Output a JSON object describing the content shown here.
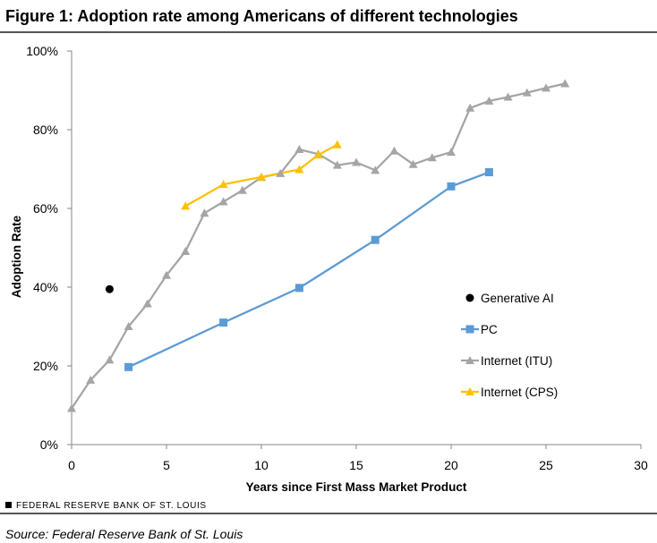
{
  "header": {
    "title": "Figure 1: Adoption rate among Americans of different technologies"
  },
  "footer": {
    "brand": "FEDERAL RESERVE BANK OF ST. LOUIS",
    "source": "Source: Federal Reserve Bank of St. Louis"
  },
  "chart_data": {
    "type": "line",
    "title": "Figure 1: Adoption rate among Americans of different technologies",
    "xlabel": "Years since First Mass Market Product",
    "ylabel": "Adoption Rate",
    "xlim": [
      0,
      30
    ],
    "ylim": [
      0,
      100
    ],
    "x_ticks": [
      0,
      5,
      10,
      15,
      20,
      25,
      30
    ],
    "y_ticks": [
      0,
      20,
      40,
      60,
      80,
      100
    ],
    "y_tick_labels": [
      "0%",
      "20%",
      "40%",
      "60%",
      "80%",
      "100%"
    ],
    "grid": false,
    "legend_position": "right-center",
    "series": [
      {
        "name": "Generative AI",
        "marker": "circle",
        "color": "#000000",
        "line": false,
        "points": [
          [
            2,
            39.5
          ]
        ]
      },
      {
        "name": "PC",
        "marker": "square",
        "color": "#5b9bd5",
        "line": true,
        "points": [
          [
            3,
            19.7
          ],
          [
            8,
            31
          ],
          [
            12,
            39.8
          ],
          [
            16,
            52
          ],
          [
            20,
            65.6
          ],
          [
            22,
            69.2
          ]
        ]
      },
      {
        "name": "Internet (ITU)",
        "marker": "triangle",
        "color": "#a5a5a5",
        "line": true,
        "points": [
          [
            0,
            9.2
          ],
          [
            1,
            16.4
          ],
          [
            2,
            21.5
          ],
          [
            3,
            30
          ],
          [
            4,
            35.8
          ],
          [
            5,
            43
          ],
          [
            6,
            49.1
          ],
          [
            7,
            58.8
          ],
          [
            8,
            61.7
          ],
          [
            9,
            64.6
          ],
          [
            10,
            67.9
          ],
          [
            11,
            68.9
          ],
          [
            12,
            75
          ],
          [
            13,
            73.8
          ],
          [
            14,
            71
          ],
          [
            15,
            71.7
          ],
          [
            16,
            69.7
          ],
          [
            17,
            74.6
          ],
          [
            18,
            71.2
          ],
          [
            19,
            72.9
          ],
          [
            20,
            74.3
          ],
          [
            21,
            85.5
          ],
          [
            22,
            87.3
          ],
          [
            23,
            88.3
          ],
          [
            24,
            89.4
          ],
          [
            25,
            90.6
          ],
          [
            26,
            91.7
          ]
        ]
      },
      {
        "name": "Internet (CPS)",
        "marker": "triangle",
        "color": "#ffc000",
        "line": true,
        "points": [
          [
            6,
            60.6
          ],
          [
            8,
            66.1
          ],
          [
            10,
            68
          ],
          [
            12,
            69.9
          ],
          [
            13,
            73.6
          ],
          [
            14,
            76.2
          ]
        ]
      }
    ]
  }
}
